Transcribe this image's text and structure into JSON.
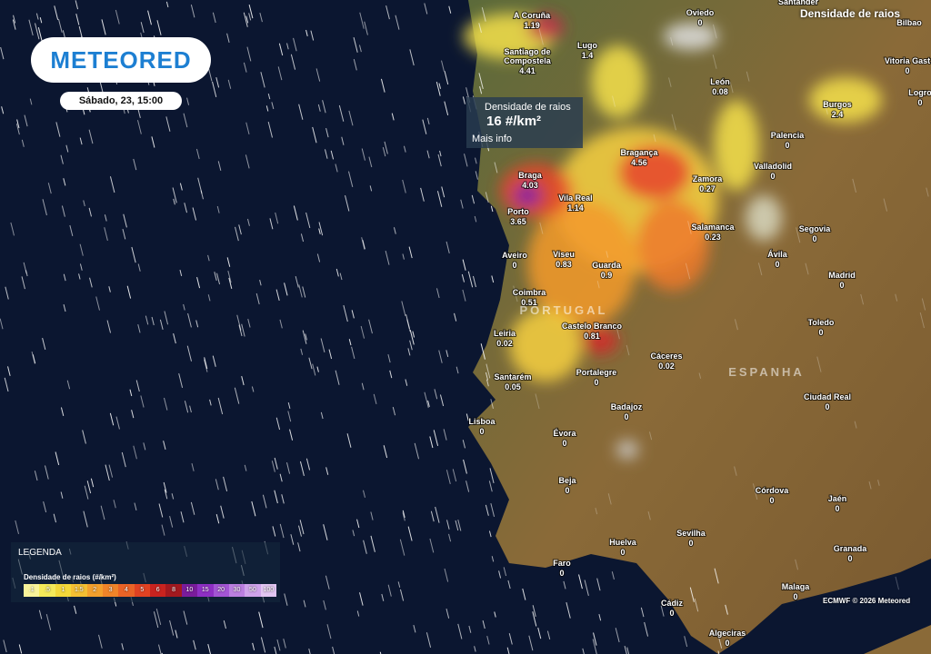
{
  "header": {
    "logo": "METEORED",
    "date": "Sábado, 23, 15:00",
    "layer": "Densidade de raios"
  },
  "tooltip": {
    "title": "Densidade de raios",
    "value": "16 #/km²",
    "link": "Mais info"
  },
  "countries": [
    "PORTUGAL",
    "ESPANHA"
  ],
  "cities": [
    {
      "name": "A Coruña",
      "value": 1.19
    },
    {
      "name": "Oviedo",
      "value": 0
    },
    {
      "name": "Santander"
    },
    {
      "name": "Bilbao"
    },
    {
      "name": "Lugo",
      "value": 1.4
    },
    {
      "name": "Santiago de Compostela",
      "value": 4.41
    },
    {
      "name": "Vitoria Gast",
      "value": 0
    },
    {
      "name": "León",
      "value": 0.08
    },
    {
      "name": "Logro",
      "value": 0
    },
    {
      "name": "Burgos",
      "value": 2.4
    },
    {
      "name": "Palencia",
      "value": 0
    },
    {
      "name": "Valladolid",
      "value": 0
    },
    {
      "name": "Bragança",
      "value": 4.56
    },
    {
      "name": "Zamora",
      "value": 0.27
    },
    {
      "name": "Braga",
      "value": 4.03
    },
    {
      "name": "Porto",
      "value": 3.65
    },
    {
      "name": "Vila Real",
      "value": 1.14
    },
    {
      "name": "Salamanca",
      "value": 0.23
    },
    {
      "name": "Segovia",
      "value": 0
    },
    {
      "name": "Aveiro",
      "value": 0
    },
    {
      "name": "Viseu",
      "value": 0.83
    },
    {
      "name": "Guarda",
      "value": 0.9
    },
    {
      "name": "Ávila",
      "value": 0
    },
    {
      "name": "Madrid",
      "value": 0
    },
    {
      "name": "Coimbra",
      "value": 0.51
    },
    {
      "name": "Toledo",
      "value": 0
    },
    {
      "name": "Leiria",
      "value": 0.02
    },
    {
      "name": "Castelo Branco",
      "value": 0.81
    },
    {
      "name": "Cáceres",
      "value": 0.02
    },
    {
      "name": "Santarém",
      "value": 0.05
    },
    {
      "name": "Portalegre",
      "value": 0
    },
    {
      "name": "Ciudad Real",
      "value": 0
    },
    {
      "name": "Lisboa",
      "value": 0
    },
    {
      "name": "Badajoz",
      "value": 0
    },
    {
      "name": "Évora",
      "value": 0
    },
    {
      "name": "Beja",
      "value": 0
    },
    {
      "name": "Córdova",
      "value": 0
    },
    {
      "name": "Jaén",
      "value": 0
    },
    {
      "name": "Sevilha",
      "value": 0
    },
    {
      "name": "Huelva",
      "value": 0
    },
    {
      "name": "Granada",
      "value": 0
    },
    {
      "name": "Faro",
      "value": 0
    },
    {
      "name": "Malaga",
      "value": 0
    },
    {
      "name": "Cádiz",
      "value": 0
    },
    {
      "name": "Algeciras",
      "value": 0
    }
  ],
  "legend": {
    "title": "LEGENDA",
    "subtitle": "Densidade de raios (#/km²)",
    "ticks": [
      ".1",
      ".5",
      "1",
      "1.5",
      "2",
      "3",
      "4",
      "5",
      "6",
      "8",
      "10",
      "15",
      "20",
      "30",
      "50",
      "100"
    ]
  },
  "credit": "ECMWF © 2026 Meteored"
}
